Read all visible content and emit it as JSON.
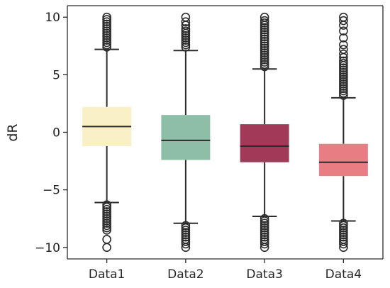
{
  "chart_data": {
    "type": "box",
    "title": "",
    "xlabel": "",
    "ylabel": "dR",
    "ylim": [
      -11,
      11
    ],
    "yticks": [
      {
        "value": 10,
        "label": "10"
      },
      {
        "value": 5,
        "label": "5"
      },
      {
        "value": 0,
        "label": "0"
      },
      {
        "value": -5,
        "label": "−5"
      },
      {
        "value": -10,
        "label": "−10"
      }
    ],
    "categories": [
      "Data1",
      "Data2",
      "Data3",
      "Data4"
    ],
    "grid": false,
    "series": [
      {
        "color": "#f9f1c5",
        "q1": -1.2,
        "median": 0.5,
        "q3": 2.2,
        "whisker_low": -6.1,
        "whisker_high": 7.2,
        "outliers_high": [
          7.4,
          7.6,
          7.8,
          8.0,
          8.2,
          8.4,
          8.6,
          8.8,
          9.0,
          9.2,
          9.4,
          9.6,
          9.8,
          10.0
        ],
        "outliers_low": [
          -6.3,
          -6.5,
          -6.7,
          -6.9,
          -7.1,
          -7.3,
          -7.5,
          -7.7,
          -7.9,
          -8.1,
          -8.3,
          -8.5,
          -9.3,
          -10.0
        ]
      },
      {
        "color": "#8dbfa8",
        "q1": -2.4,
        "median": -0.7,
        "q3": 1.5,
        "whisker_low": -7.9,
        "whisker_high": 7.1,
        "outliers_high": [
          7.4,
          7.6,
          7.8,
          8.0,
          8.2,
          8.4,
          8.6,
          8.8,
          9.0,
          9.3,
          9.6,
          10.0
        ],
        "outliers_low": [
          -8.1,
          -8.3,
          -8.5,
          -8.7,
          -8.9,
          -9.1,
          -9.3,
          -9.5,
          -9.7,
          -10.0
        ]
      },
      {
        "color": "#a13a58",
        "q1": -2.6,
        "median": -1.2,
        "q3": 0.7,
        "whisker_low": -7.3,
        "whisker_high": 5.5,
        "outliers_high": [
          5.7,
          5.9,
          6.1,
          6.3,
          6.5,
          6.7,
          6.9,
          7.1,
          7.3,
          7.5,
          7.7,
          7.9,
          8.1,
          8.3,
          8.5,
          8.7,
          8.9,
          9.1,
          9.3,
          9.5,
          9.7,
          10.0
        ],
        "outliers_low": [
          -7.5,
          -7.7,
          -7.9,
          -8.1,
          -8.3,
          -8.5,
          -8.7,
          -8.9,
          -9.1,
          -9.3,
          -9.5,
          -9.7,
          -10.0
        ]
      },
      {
        "color": "#e87e84",
        "q1": -3.8,
        "median": -2.6,
        "q3": -1.0,
        "whisker_low": -7.7,
        "whisker_high": 3.0,
        "outliers_high": [
          3.2,
          3.4,
          3.6,
          3.8,
          4.0,
          4.2,
          4.4,
          4.6,
          4.8,
          5.0,
          5.2,
          5.4,
          5.6,
          5.8,
          6.0,
          6.2,
          6.5,
          6.8,
          7.2,
          7.6,
          8.2,
          8.8,
          9.3,
          9.7,
          10.0
        ],
        "outliers_low": [
          -7.9,
          -8.1,
          -8.3,
          -8.5,
          -8.7,
          -8.9,
          -9.1,
          -9.3,
          -9.5,
          -9.7,
          -10.0
        ]
      }
    ]
  }
}
